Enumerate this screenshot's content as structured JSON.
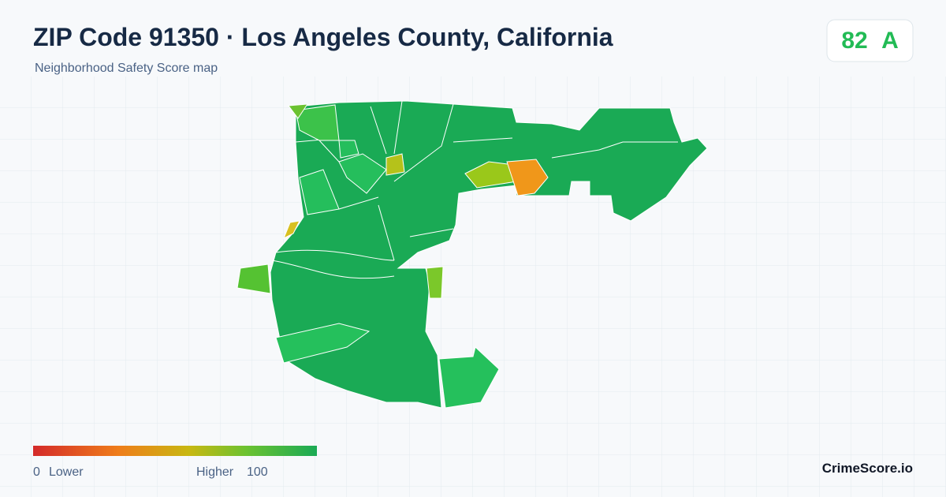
{
  "header": {
    "title": "ZIP Code 91350 · Los Angeles County, California",
    "subtitle": "Neighborhood Safety Score map"
  },
  "score": {
    "value": 82,
    "grade": "A"
  },
  "legend": {
    "min": 0,
    "min_label": "Lower",
    "max_label": "Higher",
    "max": 100
  },
  "brand": "CrimeScore.io"
}
